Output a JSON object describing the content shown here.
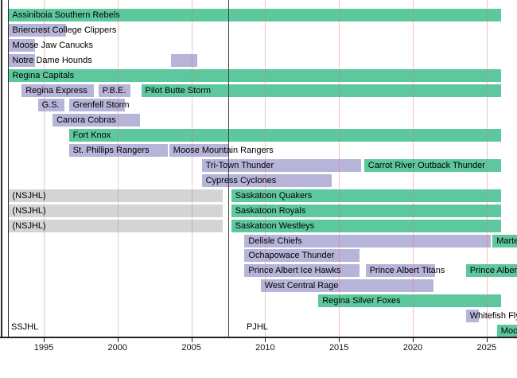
{
  "colors": {
    "green": "#5dc89e",
    "purple": "#b6b4d9",
    "gray": "#d4d4d4",
    "gridline_pink": "#efc5c5",
    "era_divider": "#3f3f3f",
    "axis_border": "#222222"
  },
  "chart_data": {
    "type": "timeline",
    "x_axis": {
      "ticks": [
        1995,
        2000,
        2005,
        2010,
        2015,
        2020,
        2025
      ],
      "start": 1992.6,
      "end": 2027.1,
      "grid": true
    },
    "era_divider_year": 2007.5,
    "league_labels": [
      {
        "label": "SSJHL"
      },
      {
        "label": "PJHL"
      }
    ],
    "rows": [
      {
        "segments": [
          {
            "label": "Assiniboia Southern Rebels",
            "color": "green",
            "start": 1992.6,
            "end": 2026.0
          }
        ]
      },
      {
        "segments": [
          {
            "label": "Briercrest College Clippers",
            "color": "purple",
            "start": 1992.6,
            "end": 1996.5
          }
        ]
      },
      {
        "segments": [
          {
            "label": "Moose Jaw Canucks",
            "color": "purple",
            "start": 1992.6,
            "end": 1994.4
          }
        ]
      },
      {
        "segments": [
          {
            "label": "Notre Dame Hounds",
            "color": "purple",
            "start": 1992.6,
            "end": 1994.4
          },
          {
            "label": "",
            "color": "purple",
            "start": 2003.6,
            "end": 2005.4
          }
        ]
      },
      {
        "segments": [
          {
            "label": "Regina Capitals",
            "color": "green",
            "start": 1992.6,
            "end": 2026.0
          }
        ]
      },
      {
        "segments": [
          {
            "label": "Regina Express",
            "color": "purple",
            "start": 1993.5,
            "end": 1998.4
          },
          {
            "label": "P.B.E.",
            "color": "purple",
            "start": 1998.7,
            "end": 2000.9
          },
          {
            "label": "Pilot Butte Storm",
            "color": "green",
            "start": 2001.6,
            "end": 2026.0
          }
        ]
      },
      {
        "segments": [
          {
            "label": "G.S.",
            "color": "purple",
            "start": 1994.6,
            "end": 1996.4
          },
          {
            "label": "Grenfell Storm",
            "color": "purple",
            "start": 1996.7,
            "end": 2000.5
          }
        ]
      },
      {
        "segments": [
          {
            "label": "Canora Cobras",
            "color": "purple",
            "start": 1995.6,
            "end": 2001.5
          }
        ]
      },
      {
        "segments": [
          {
            "label": "Fort Knox",
            "color": "green",
            "start": 1996.7,
            "end": 2026.0
          }
        ]
      },
      {
        "segments": [
          {
            "label": "St. Phillips Rangers",
            "color": "purple",
            "start": 1996.7,
            "end": 2003.4
          },
          {
            "label": "Moose Mountain Rangers",
            "color": "purple",
            "start": 2003.5,
            "end": 2007.5
          }
        ]
      },
      {
        "segments": [
          {
            "label": "Tri-Town Thunder",
            "color": "purple",
            "start": 2005.7,
            "end": 2016.5
          },
          {
            "label": "Carrot River Outback Thunder",
            "color": "green",
            "start": 2016.7,
            "end": 2026.0
          }
        ]
      },
      {
        "segments": [
          {
            "label": "Cypress Cyclones",
            "color": "purple",
            "start": 2005.7,
            "end": 2014.5
          }
        ]
      },
      {
        "segments": [
          {
            "label": "(NSJHL)",
            "color": "gray",
            "start": 1992.6,
            "end": 2007.1
          },
          {
            "label": "Saskatoon Quakers",
            "color": "green",
            "start": 2007.7,
            "end": 2026.0
          }
        ]
      },
      {
        "segments": [
          {
            "label": "(NSJHL)",
            "color": "gray",
            "start": 1992.6,
            "end": 2007.1
          },
          {
            "label": "Saskatoon Royals",
            "color": "green",
            "start": 2007.7,
            "end": 2026.0
          }
        ]
      },
      {
        "segments": [
          {
            "label": "(NSJHL)",
            "color": "gray",
            "start": 1992.6,
            "end": 2007.1
          },
          {
            "label": "Saskatoon Westleys",
            "color": "green",
            "start": 2007.7,
            "end": 2026.0
          }
        ]
      },
      {
        "segments": [
          {
            "label": "Delisle Chiefs",
            "color": "purple",
            "start": 2008.6,
            "end": 2025.3
          },
          {
            "label": "Marte",
            "color": "green",
            "start": 2025.4,
            "end": 2027.2,
            "cut": true
          }
        ]
      },
      {
        "segments": [
          {
            "label": "Ochapowace Thunder",
            "color": "purple",
            "start": 2008.6,
            "end": 2016.4
          }
        ]
      },
      {
        "segments": [
          {
            "label": "Prince Albert Ice Hawks",
            "color": "purple",
            "start": 2008.6,
            "end": 2016.4
          },
          {
            "label": "Prince Albert Titans",
            "color": "purple",
            "start": 2016.8,
            "end": 2021.5
          },
          {
            "label": "Prince Albert",
            "color": "green",
            "start": 2023.6,
            "end": 2027.2,
            "cut": true
          }
        ]
      },
      {
        "segments": [
          {
            "label": "West Central Rage",
            "color": "purple",
            "start": 2009.7,
            "end": 2021.4
          }
        ]
      },
      {
        "segments": [
          {
            "label": "Regina Silver Foxes",
            "color": "green",
            "start": 2013.6,
            "end": 2026.0
          }
        ]
      },
      {
        "segments": [
          {
            "label": "Whitefish Fly",
            "color": "purple",
            "start": 2023.6,
            "end": 2024.5
          }
        ]
      },
      {
        "segments": [
          {
            "label": "Moos",
            "color": "green",
            "start": 2025.7,
            "end": 2027.2,
            "cut": true
          }
        ]
      }
    ]
  }
}
